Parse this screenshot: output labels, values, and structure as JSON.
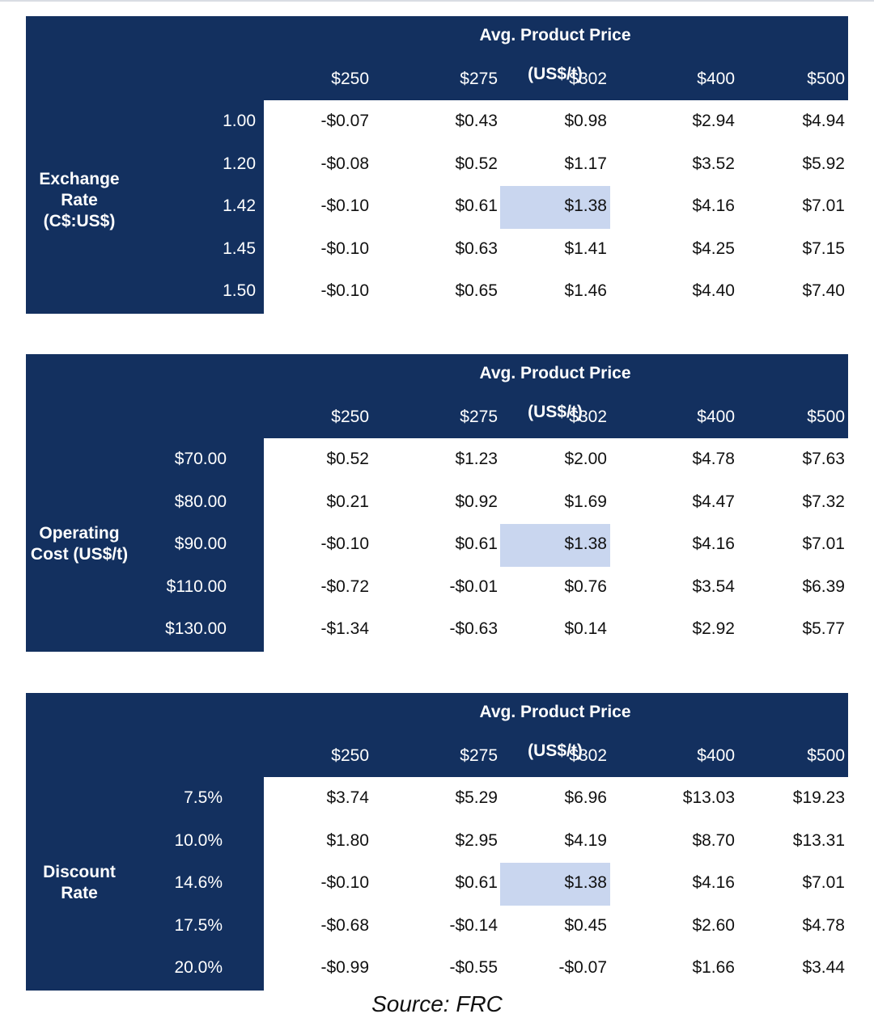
{
  "header_title": "Avg. Product Price (US$/t)",
  "columns": [
    "$250",
    "$275",
    "$302",
    "$400",
    "$500"
  ],
  "tables": [
    {
      "group_label": [
        "Exchange",
        "Rate",
        "(C$:US$)"
      ],
      "row_labels": [
        "1.00",
        "1.20",
        "1.42",
        "1.45",
        "1.50"
      ],
      "rows": [
        [
          "-$0.07",
          "$0.43",
          "$0.98",
          "$2.94",
          "$4.94"
        ],
        [
          "-$0.08",
          "$0.52",
          "$1.17",
          "$3.52",
          "$5.92"
        ],
        [
          "-$0.10",
          "$0.61",
          "$1.38",
          "$4.16",
          "$7.01"
        ],
        [
          "-$0.10",
          "$0.63",
          "$1.41",
          "$4.25",
          "$7.15"
        ],
        [
          "-$0.10",
          "$0.65",
          "$1.46",
          "$4.40",
          "$7.40"
        ]
      ],
      "highlight": {
        "row": 2,
        "col": 2
      }
    },
    {
      "group_label": [
        "Operating",
        "Cost (US$/t)"
      ],
      "row_labels": [
        "$70.00",
        "$80.00",
        "$90.00",
        "$110.00",
        "$130.00"
      ],
      "rows": [
        [
          "$0.52",
          "$1.23",
          "$2.00",
          "$4.78",
          "$7.63"
        ],
        [
          "$0.21",
          "$0.92",
          "$1.69",
          "$4.47",
          "$7.32"
        ],
        [
          "-$0.10",
          "$0.61",
          "$1.38",
          "$4.16",
          "$7.01"
        ],
        [
          "-$0.72",
          "-$0.01",
          "$0.76",
          "$3.54",
          "$6.39"
        ],
        [
          "-$1.34",
          "-$0.63",
          "$0.14",
          "$2.92",
          "$5.77"
        ]
      ],
      "highlight": {
        "row": 2,
        "col": 2
      }
    },
    {
      "group_label": [
        "Discount",
        "Rate"
      ],
      "row_labels": [
        "7.5%",
        "10.0%",
        "14.6%",
        "17.5%",
        "20.0%"
      ],
      "rows": [
        [
          "$3.74",
          "$5.29",
          "$6.96",
          "$13.03",
          "$19.23"
        ],
        [
          "$1.80",
          "$2.95",
          "$4.19",
          "$8.70",
          "$13.31"
        ],
        [
          "-$0.10",
          "$0.61",
          "$1.38",
          "$4.16",
          "$7.01"
        ],
        [
          "-$0.68",
          "-$0.14",
          "$0.45",
          "$2.60",
          "$4.78"
        ],
        [
          "-$0.99",
          "-$0.55",
          "-$0.07",
          "$1.66",
          "$3.44"
        ]
      ],
      "highlight": {
        "row": 2,
        "col": 2
      }
    }
  ],
  "source": "Source: FRC",
  "colors": {
    "navy": "#13305f",
    "highlight": "#c9d6ef"
  }
}
